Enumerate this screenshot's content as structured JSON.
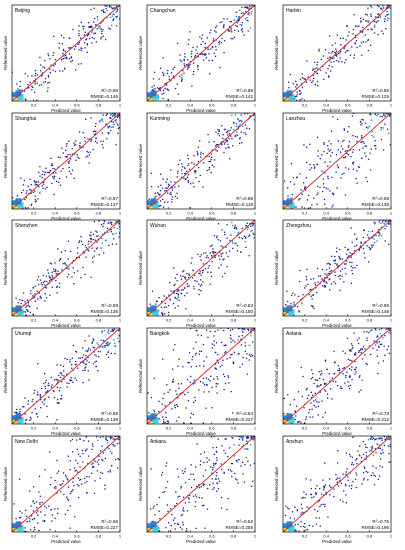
{
  "chart_data": {
    "type": "scatter",
    "xlabel": "Predicted value",
    "ylabel": "Referenced value",
    "xlim": [
      0,
      1
    ],
    "ylim": [
      0,
      1
    ],
    "x_ticks": [
      "0.2",
      "0.4",
      "0.6",
      "0.8",
      "1"
    ],
    "grid": false,
    "reference_line": "y = x",
    "colors": {
      "reference_line": "#d62728",
      "low_density": "#1c1c8c",
      "mid_density": "#1f78d1",
      "high_density": "#2fd0e8",
      "peak_density": "#f2e84a"
    },
    "panels": [
      {
        "city": "Beijing",
        "r2_label": "R",
        "r2_value": "=0.86",
        "rmse_text": "RMSE=0.146"
      },
      {
        "city": "Changchun",
        "r2_label": "R",
        "r2_value": "=0.89",
        "rmse_text": "RMSE=0.142"
      },
      {
        "city": "Harbin",
        "r2_label": "R",
        "r2_value": "=0.86",
        "rmse_text": "RMSE=0.125"
      },
      {
        "city": "Shanghai",
        "r2_label": "R",
        "r2_value": "=0.87",
        "rmse_text": "RMSE=0.137"
      },
      {
        "city": "Kunming",
        "r2_label": "R",
        "r2_value": "=0.88",
        "rmse_text": "RMSE=0.116"
      },
      {
        "city": "Lanzhou",
        "r2_label": "R",
        "r2_value": "=0.58",
        "rmse_text": "RMSE=0.138"
      },
      {
        "city": "Shenzhen",
        "r2_label": "R",
        "r2_value": "=0.89",
        "rmse_text": "RMSE=0.135"
      },
      {
        "city": "Wuhan",
        "r2_label": "R",
        "r2_value": "=0.83",
        "rmse_text": "RMSE=0.150"
      },
      {
        "city": "Zhengzhou",
        "r2_label": "R",
        "r2_value": "=0.86",
        "rmse_text": "RMSE=0.148"
      },
      {
        "city": "Urumqi",
        "r2_label": "R",
        "r2_value": "=0.86",
        "rmse_text": "RMSE=0.139"
      },
      {
        "city": "Bangkok",
        "r2_label": "R",
        "r2_value": "=0.54",
        "rmse_text": "RMSE=0.227"
      },
      {
        "city": "Astana",
        "r2_label": "R",
        "r2_value": "=0.73",
        "rmse_text": "RMSE=0.212"
      },
      {
        "city": "New Delhi",
        "r2_label": "R",
        "r2_value": "=0.66",
        "rmse_text": "RMSE=0.227"
      },
      {
        "city": "Ankara",
        "r2_label": "R",
        "r2_value": "=0.52",
        "rmse_text": "RMSE=0.255"
      },
      {
        "city": "Anshun",
        "r2_label": "R",
        "r2_value": "=0.75",
        "rmse_text": "RMSE=0.196"
      }
    ]
  }
}
